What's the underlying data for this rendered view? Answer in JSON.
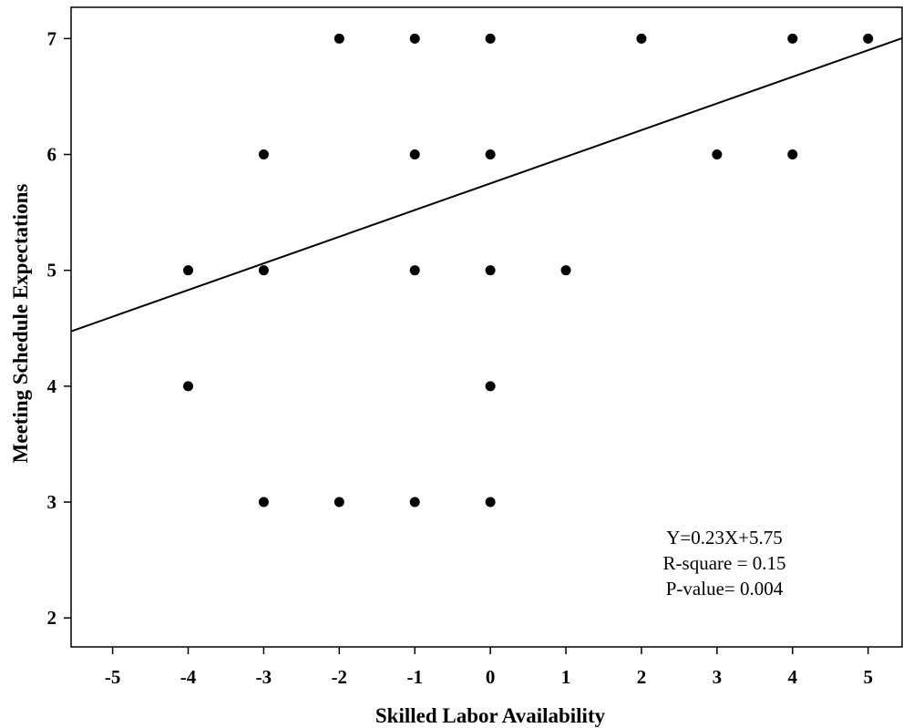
{
  "chart_data": {
    "type": "scatter",
    "title": "",
    "xlabel": "Skilled Labor Availability",
    "ylabel": "Meeting Schedule Expectations",
    "xlim": [
      -5.55,
      5.45
    ],
    "ylim": [
      1.75,
      7.27
    ],
    "xticks": [
      -5,
      -4,
      -3,
      -2,
      -1,
      0,
      1,
      2,
      3,
      4,
      5
    ],
    "yticks": [
      2,
      3,
      4,
      5,
      6,
      7
    ],
    "grid": false,
    "legend": "none",
    "series": [
      {
        "points": [
          [
            -2,
            7
          ],
          [
            -1,
            7
          ],
          [
            0,
            7
          ],
          [
            2,
            7
          ],
          [
            4,
            7
          ],
          [
            5,
            7
          ],
          [
            -3,
            6
          ],
          [
            -1,
            6
          ],
          [
            0,
            6
          ],
          [
            3,
            6
          ],
          [
            4,
            6
          ],
          [
            -4,
            5
          ],
          [
            -3,
            5
          ],
          [
            -1,
            5
          ],
          [
            0,
            5
          ],
          [
            1,
            5
          ],
          [
            -4,
            4
          ],
          [
            0,
            4
          ],
          [
            -3,
            3
          ],
          [
            -2,
            3
          ],
          [
            -1,
            3
          ],
          [
            0,
            3
          ]
        ]
      }
    ],
    "fit_line": {
      "slope": 0.23,
      "intercept": 5.75
    },
    "annotations": [
      "Y=0.23X+5.75",
      "R-square = 0.15",
      "P-value= 0.004"
    ]
  }
}
